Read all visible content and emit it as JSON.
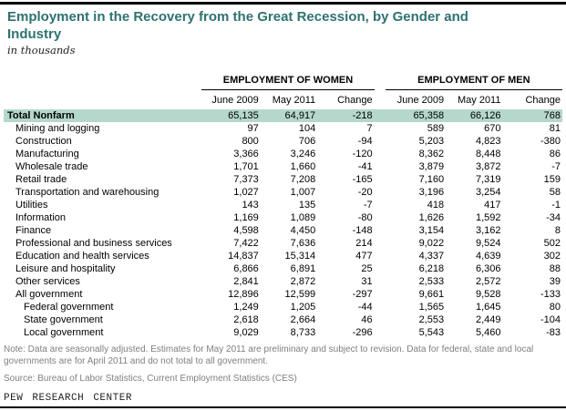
{
  "title": "Employment in the Recovery from the Great Recession, by Gender and Industry",
  "subtitle": "in thousands",
  "groups": [
    {
      "label": "EMPLOYMENT OF WOMEN"
    },
    {
      "label": "EMPLOYMENT OF MEN"
    }
  ],
  "columns": [
    "June 2009",
    "May 2011",
    "Change"
  ],
  "table": {
    "rows": [
      {
        "label": "Total Nonfarm",
        "indent": 0,
        "bold": true,
        "highlight": true,
        "values": [
          "65,135",
          "64,917",
          "-218",
          "65,358",
          "66,126",
          "768"
        ]
      },
      {
        "label": "Mining and logging",
        "indent": 1,
        "bold": false,
        "highlight": false,
        "values": [
          "97",
          "104",
          "7",
          "589",
          "670",
          "81"
        ]
      },
      {
        "label": "Construction",
        "indent": 1,
        "bold": false,
        "highlight": false,
        "values": [
          "800",
          "706",
          "-94",
          "5,203",
          "4,823",
          "-380"
        ]
      },
      {
        "label": "Manufacturing",
        "indent": 1,
        "bold": false,
        "highlight": false,
        "values": [
          "3,366",
          "3,246",
          "-120",
          "8,362",
          "8,448",
          "86"
        ]
      },
      {
        "label": "Wholesale trade",
        "indent": 1,
        "bold": false,
        "highlight": false,
        "values": [
          "1,701",
          "1,660",
          "-41",
          "3,879",
          "3,872",
          "-7"
        ]
      },
      {
        "label": "Retail trade",
        "indent": 1,
        "bold": false,
        "highlight": false,
        "values": [
          "7,373",
          "7,208",
          "-165",
          "7,160",
          "7,319",
          "159"
        ]
      },
      {
        "label": "Transportation and warehousing",
        "indent": 1,
        "bold": false,
        "highlight": false,
        "values": [
          "1,027",
          "1,007",
          "-20",
          "3,196",
          "3,254",
          "58"
        ]
      },
      {
        "label": "Utilities",
        "indent": 1,
        "bold": false,
        "highlight": false,
        "values": [
          "143",
          "135",
          "-7",
          "418",
          "417",
          "-1"
        ]
      },
      {
        "label": "Information",
        "indent": 1,
        "bold": false,
        "highlight": false,
        "values": [
          "1,169",
          "1,089",
          "-80",
          "1,626",
          "1,592",
          "-34"
        ]
      },
      {
        "label": "Finance",
        "indent": 1,
        "bold": false,
        "highlight": false,
        "values": [
          "4,598",
          "4,450",
          "-148",
          "3,154",
          "3,162",
          "8"
        ]
      },
      {
        "label": "Professional and business services",
        "indent": 1,
        "bold": false,
        "highlight": false,
        "values": [
          "7,422",
          "7,636",
          "214",
          "9,022",
          "9,524",
          "502"
        ]
      },
      {
        "label": "Education and health services",
        "indent": 1,
        "bold": false,
        "highlight": false,
        "values": [
          "14,837",
          "15,314",
          "477",
          "4,337",
          "4,639",
          "302"
        ]
      },
      {
        "label": "Leisure and hospitality",
        "indent": 1,
        "bold": false,
        "highlight": false,
        "values": [
          "6,866",
          "6,891",
          "25",
          "6,218",
          "6,306",
          "88"
        ]
      },
      {
        "label": "Other services",
        "indent": 1,
        "bold": false,
        "highlight": false,
        "values": [
          "2,841",
          "2,872",
          "31",
          "2,533",
          "2,572",
          "39"
        ]
      },
      {
        "label": "All government",
        "indent": 1,
        "bold": false,
        "highlight": false,
        "values": [
          "12,896",
          "12,599",
          "-297",
          "9,661",
          "9,528",
          "-133"
        ]
      },
      {
        "label": "Federal government",
        "indent": 2,
        "bold": false,
        "highlight": false,
        "values": [
          "1,249",
          "1,205",
          "-44",
          "1,565",
          "1,645",
          "80"
        ]
      },
      {
        "label": "State government",
        "indent": 2,
        "bold": false,
        "highlight": false,
        "values": [
          "2,618",
          "2,664",
          "46",
          "2,553",
          "2,449",
          "-104"
        ]
      },
      {
        "label": "Local government",
        "indent": 2,
        "bold": false,
        "highlight": false,
        "values": [
          "9,029",
          "8,733",
          "-296",
          "5,543",
          "5,460",
          "-83"
        ]
      }
    ]
  },
  "note": "Note: Data are seasonally adjusted. Estimates for May 2011 are preliminary and subject to revision. Data for federal, state and local governments are for April 2011 and do not total to all government.",
  "source": "Source: Bureau of Labor Statistics, Current Employment Statistics (CES)",
  "footer": "PEW RESEARCH CENTER",
  "colors": {
    "title_text": "#2e7270",
    "highlight_row_bg": "#b5d7cc",
    "note_text": "#7f7f7f",
    "rule": "#000000"
  },
  "chart_data": {
    "type": "table",
    "title": "Employment in the Recovery from the Great Recession, by Gender and Industry",
    "subtitle": "in thousands",
    "column_groups": [
      "EMPLOYMENT OF WOMEN",
      "EMPLOYMENT OF MEN"
    ],
    "columns": [
      "Women June 2009",
      "Women May 2011",
      "Women Change",
      "Men June 2009",
      "Men May 2011",
      "Men Change"
    ],
    "categories": [
      "Total Nonfarm",
      "Mining and logging",
      "Construction",
      "Manufacturing",
      "Wholesale trade",
      "Retail trade",
      "Transportation and warehousing",
      "Utilities",
      "Information",
      "Finance",
      "Professional and business services",
      "Education and health services",
      "Leisure and hospitality",
      "Other services",
      "All government",
      "Federal government",
      "State government",
      "Local government"
    ],
    "series": [
      {
        "name": "Women June 2009",
        "values": [
          65135,
          97,
          800,
          3366,
          1701,
          7373,
          1027,
          143,
          1169,
          4598,
          7422,
          14837,
          6866,
          2841,
          12896,
          1249,
          2618,
          9029
        ]
      },
      {
        "name": "Women May 2011",
        "values": [
          64917,
          104,
          706,
          3246,
          1660,
          7208,
          1007,
          135,
          1089,
          4450,
          7636,
          15314,
          6891,
          2872,
          12599,
          1205,
          2664,
          8733
        ]
      },
      {
        "name": "Women Change",
        "values": [
          -218,
          7,
          -94,
          -120,
          -41,
          -165,
          -20,
          -7,
          -80,
          -148,
          214,
          477,
          25,
          31,
          -297,
          -44,
          46,
          -296
        ]
      },
      {
        "name": "Men June 2009",
        "values": [
          65358,
          589,
          5203,
          8362,
          3879,
          7160,
          3196,
          418,
          1626,
          3154,
          9022,
          4337,
          6218,
          2533,
          9661,
          1565,
          2553,
          5543
        ]
      },
      {
        "name": "Men May 2011",
        "values": [
          66126,
          670,
          4823,
          8448,
          3872,
          7319,
          3254,
          417,
          1592,
          3162,
          9524,
          4639,
          6306,
          2572,
          9528,
          1645,
          2449,
          5460
        ]
      },
      {
        "name": "Men Change",
        "values": [
          768,
          81,
          -380,
          86,
          -7,
          159,
          58,
          -1,
          -34,
          8,
          502,
          302,
          88,
          39,
          -133,
          80,
          -104,
          -83
        ]
      }
    ],
    "note": "Data are seasonally adjusted. Estimates for May 2011 are preliminary and subject to revision. Data for federal, state and local governments are for April 2011 and do not total to all government.",
    "source": "Bureau of Labor Statistics, Current Employment Statistics (CES)"
  }
}
